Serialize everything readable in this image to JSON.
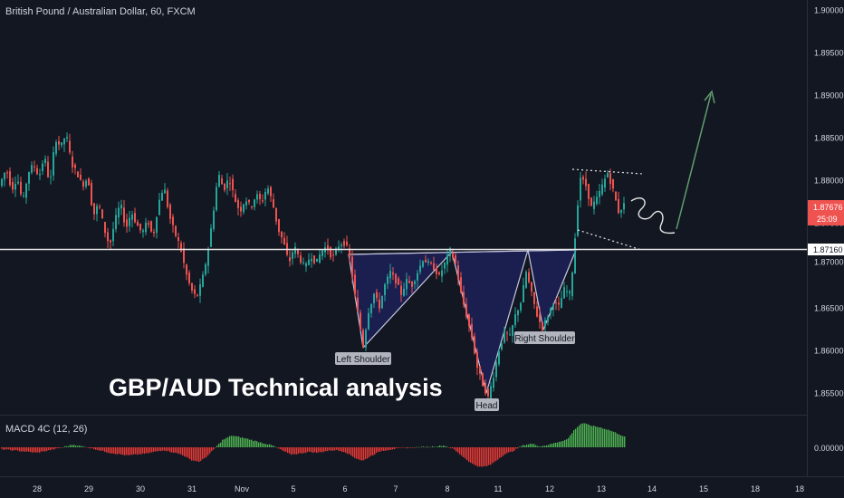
{
  "header": {
    "title": "British Pound / Australian Dollar, 60, FXCM"
  },
  "indicator": {
    "label": "MACD 4C (12, 26)",
    "zero_label": "0.00000"
  },
  "annotation": {
    "headline": "GBP/AUD Technical analysis"
  },
  "pattern": {
    "left_shoulder": "Left Shoulder",
    "head": "Head",
    "right_shoulder": "Right Shoulder"
  },
  "price_axis": {
    "ticks": [
      "1.90000",
      "1.89500",
      "1.89000",
      "1.88500",
      "1.88000",
      "1.87500",
      "1.87000",
      "1.86500",
      "1.86000",
      "1.85500"
    ],
    "neckline_label": "1.87160",
    "last_price_label": "1.87676",
    "countdown_label": "25:09"
  },
  "time_axis": {
    "ticks": [
      "28",
      "29",
      "30",
      "31",
      "Nov",
      "5",
      "6",
      "7",
      "8",
      "11",
      "12",
      "13",
      "14",
      "15",
      "18"
    ]
  },
  "colors": {
    "background": "#131722",
    "bull": "#26a69a",
    "bear": "#ef5350",
    "macd_up": "#4caf50",
    "macd_down": "#e53935",
    "pattern_fill": "#1a1f4f",
    "arrow": "#5f9e6e",
    "last_price": "#ef5350"
  },
  "chart_data": {
    "type": "candlestick",
    "symbol": "British Pound / Australian Dollar",
    "interval": "60",
    "ylim": [
      1.8525,
      1.9005
    ],
    "neckline": 1.8716,
    "last_price": 1.87676,
    "price_path": [
      [
        0,
        1.8795
      ],
      [
        6,
        1.881
      ],
      [
        12,
        1.8785
      ],
      [
        18,
        1.88
      ],
      [
        24,
        1.877
      ],
      [
        30,
        1.8805
      ],
      [
        36,
        1.8815
      ],
      [
        42,
        1.88
      ],
      [
        48,
        1.8825
      ],
      [
        54,
        1.879
      ],
      [
        60,
        1.8845
      ],
      [
        66,
        1.8835
      ],
      [
        72,
        1.885
      ],
      [
        78,
        1.8815
      ],
      [
        84,
        1.8805
      ],
      [
        90,
        1.879
      ],
      [
        96,
        1.88
      ],
      [
        102,
        1.8755
      ],
      [
        108,
        1.877
      ],
      [
        114,
        1.874
      ],
      [
        120,
        1.872
      ],
      [
        126,
        1.875
      ],
      [
        132,
        1.877
      ],
      [
        138,
        1.874
      ],
      [
        144,
        1.876
      ],
      [
        150,
        1.8745
      ],
      [
        156,
        1.8735
      ],
      [
        162,
        1.875
      ],
      [
        168,
        1.873
      ],
      [
        174,
        1.877
      ],
      [
        180,
        1.879
      ],
      [
        186,
        1.8755
      ],
      [
        192,
        1.8735
      ],
      [
        198,
        1.872
      ],
      [
        204,
        1.869
      ],
      [
        210,
        1.867
      ],
      [
        216,
        1.866
      ],
      [
        222,
        1.868
      ],
      [
        228,
        1.871
      ],
      [
        234,
        1.8755
      ],
      [
        240,
        1.8805
      ],
      [
        246,
        1.8785
      ],
      [
        252,
        1.88
      ],
      [
        258,
        1.8775
      ],
      [
        264,
        1.876
      ],
      [
        270,
        1.8775
      ],
      [
        276,
        1.8765
      ],
      [
        282,
        1.878
      ],
      [
        288,
        1.877
      ],
      [
        294,
        1.879
      ],
      [
        300,
        1.877
      ],
      [
        306,
        1.874
      ],
      [
        312,
        1.8725
      ],
      [
        318,
        1.87
      ],
      [
        324,
        1.872
      ],
      [
        330,
        1.8705
      ],
      [
        336,
        1.8695
      ],
      [
        342,
        1.871
      ],
      [
        348,
        1.87
      ],
      [
        354,
        1.8715
      ],
      [
        360,
        1.872
      ],
      [
        366,
        1.8705
      ],
      [
        372,
        1.872
      ],
      [
        378,
        1.8725
      ],
      [
        384,
        1.8715
      ],
      [
        390,
        1.867
      ],
      [
        396,
        1.863
      ],
      [
        400,
        1.8605
      ],
      [
        406,
        1.8645
      ],
      [
        412,
        1.8665
      ],
      [
        418,
        1.865
      ],
      [
        424,
        1.8675
      ],
      [
        430,
        1.869
      ],
      [
        436,
        1.868
      ],
      [
        442,
        1.8665
      ],
      [
        448,
        1.868
      ],
      [
        454,
        1.8675
      ],
      [
        460,
        1.869
      ],
      [
        466,
        1.8705
      ],
      [
        472,
        1.87
      ],
      [
        478,
        1.8695
      ],
      [
        484,
        1.8685
      ],
      [
        490,
        1.87
      ],
      [
        496,
        1.8715
      ],
      [
        502,
        1.87
      ],
      [
        508,
        1.8665
      ],
      [
        514,
        1.864
      ],
      [
        520,
        1.8615
      ],
      [
        526,
        1.858
      ],
      [
        532,
        1.856
      ],
      [
        538,
        1.8545
      ],
      [
        544,
        1.857
      ],
      [
        550,
        1.86
      ],
      [
        556,
        1.862
      ],
      [
        562,
        1.8615
      ],
      [
        568,
        1.864
      ],
      [
        574,
        1.8655
      ],
      [
        580,
        1.869
      ],
      [
        586,
        1.8665
      ],
      [
        592,
        1.864
      ],
      [
        598,
        1.8625
      ],
      [
        604,
        1.864
      ],
      [
        610,
        1.8655
      ],
      [
        616,
        1.865
      ],
      [
        622,
        1.867
      ],
      [
        628,
        1.8665
      ],
      [
        632,
        1.87
      ],
      [
        636,
        1.876
      ],
      [
        640,
        1.88
      ],
      [
        646,
        1.879
      ],
      [
        652,
        1.8765
      ],
      [
        658,
        1.8775
      ],
      [
        664,
        1.879
      ],
      [
        670,
        1.8805
      ],
      [
        676,
        1.8785
      ],
      [
        682,
        1.876
      ],
      [
        688,
        1.8768
      ]
    ],
    "macd_hist": [
      [
        0,
        -2
      ],
      [
        20,
        -4
      ],
      [
        40,
        -6
      ],
      [
        60,
        -2
      ],
      [
        80,
        3
      ],
      [
        100,
        -1
      ],
      [
        120,
        -6
      ],
      [
        140,
        -9
      ],
      [
        160,
        -7
      ],
      [
        180,
        -3
      ],
      [
        200,
        -8
      ],
      [
        210,
        -14
      ],
      [
        220,
        -16
      ],
      [
        230,
        -8
      ],
      [
        245,
        8
      ],
      [
        255,
        13
      ],
      [
        270,
        10
      ],
      [
        285,
        6
      ],
      [
        300,
        2
      ],
      [
        310,
        -3
      ],
      [
        320,
        -8
      ],
      [
        330,
        -7
      ],
      [
        340,
        -5
      ],
      [
        350,
        -6
      ],
      [
        360,
        -4
      ],
      [
        370,
        -3
      ],
      [
        380,
        -5
      ],
      [
        392,
        -12
      ],
      [
        400,
        -15
      ],
      [
        408,
        -10
      ],
      [
        420,
        -4
      ],
      [
        440,
        -1
      ],
      [
        460,
        0
      ],
      [
        480,
        1
      ],
      [
        490,
        2
      ],
      [
        500,
        -2
      ],
      [
        510,
        -10
      ],
      [
        520,
        -18
      ],
      [
        530,
        -22
      ],
      [
        540,
        -20
      ],
      [
        548,
        -14
      ],
      [
        556,
        -8
      ],
      [
        566,
        -4
      ],
      [
        576,
        2
      ],
      [
        586,
        4
      ],
      [
        596,
        1
      ],
      [
        606,
        3
      ],
      [
        616,
        6
      ],
      [
        626,
        9
      ],
      [
        634,
        20
      ],
      [
        642,
        27
      ],
      [
        652,
        24
      ],
      [
        662,
        22
      ],
      [
        672,
        19
      ],
      [
        682,
        15
      ],
      [
        690,
        11
      ]
    ],
    "annotations": [
      "Left Shoulder",
      "Head",
      "Right Shoulder",
      "GBP/AUD Technical analysis"
    ]
  }
}
